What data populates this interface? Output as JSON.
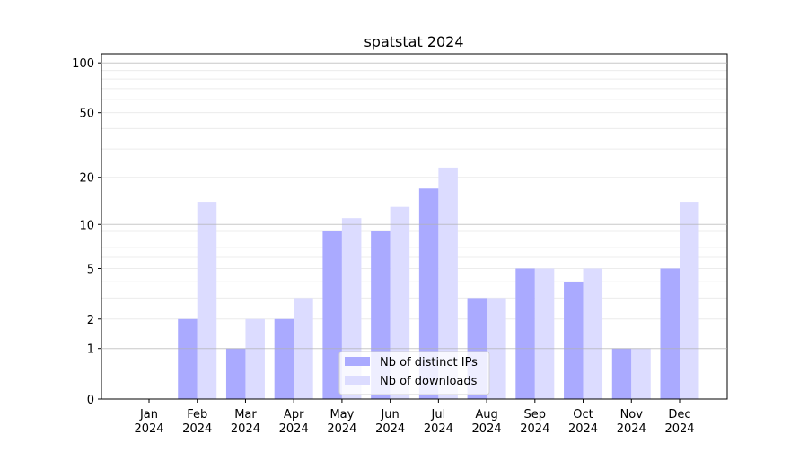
{
  "chart_data": {
    "type": "bar",
    "title": "spatstat 2024",
    "xlabel": "",
    "ylabel": "",
    "yscale": "log(1+y)",
    "ylim": [
      0,
      110
    ],
    "yticks": [
      0,
      1,
      2,
      5,
      10,
      20,
      50,
      100
    ],
    "ytick_labels": [
      "0",
      "1",
      "2",
      "5",
      "10",
      "20",
      "50",
      "100"
    ],
    "categories": [
      "Jan\n2024",
      "Feb\n2024",
      "Mar\n2024",
      "Apr\n2024",
      "May\n2024",
      "Jun\n2024",
      "Jul\n2024",
      "Aug\n2024",
      "Sep\n2024",
      "Oct\n2024",
      "Nov\n2024",
      "Dec\n2024"
    ],
    "series": [
      {
        "name": "Nb of distinct IPs",
        "color": "#aaaaff",
        "values": [
          0,
          2,
          1,
          2,
          9,
          9,
          17,
          3,
          5,
          4,
          1,
          5
        ]
      },
      {
        "name": "Nb of downloads",
        "color": "#dcdcff",
        "values": [
          0,
          14,
          2,
          3,
          11,
          13,
          23,
          3,
          5,
          5,
          1,
          14
        ]
      }
    ],
    "grid": "y major and minor",
    "legend": "lower-center"
  }
}
